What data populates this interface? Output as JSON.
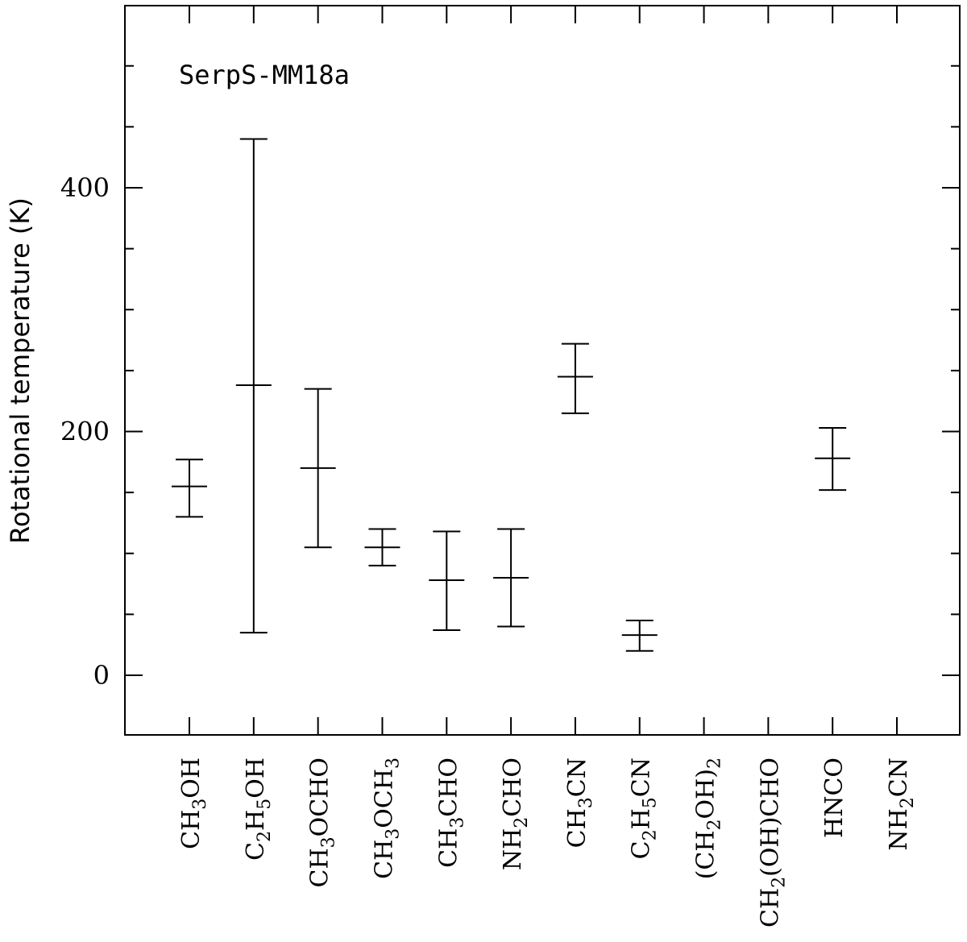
{
  "chart_data": {
    "type": "scatter",
    "title": "SerpS-MM18a",
    "xlabel": "",
    "ylabel": "Rotational temperature (K)",
    "ylim": [
      -50,
      550
    ],
    "yticks": [
      0,
      200,
      400
    ],
    "categories": [
      {
        "base": "CH",
        "sub": "3",
        "tail": "OH"
      },
      {
        "base": "C",
        "sub": "2",
        "mid": "H",
        "sub2": "5",
        "tail": "OH"
      },
      {
        "base": "CH",
        "sub": "3",
        "tail": "OCHO"
      },
      {
        "base": "CH",
        "sub": "3",
        "mid": "OCH",
        "sub2": "3"
      },
      {
        "base": "CH",
        "sub": "3",
        "tail": "CHO"
      },
      {
        "base": "NH",
        "sub": "2",
        "tail": "CHO"
      },
      {
        "base": "CH",
        "sub": "3",
        "tail": "CN"
      },
      {
        "base": "C",
        "sub": "2",
        "mid": "H",
        "sub2": "5",
        "tail": "CN"
      },
      {
        "base": "(CH",
        "sub": "2",
        "tail": "OH)",
        "sub2": "2"
      },
      {
        "base": "CH",
        "sub": "2",
        "tail": "(OH)CHO"
      },
      {
        "base": "HNCO"
      },
      {
        "base": "NH",
        "sub": "2",
        "tail": "CN"
      }
    ],
    "series": [
      {
        "name": "SerpS-MM18a",
        "values": [
          155,
          238,
          170,
          105,
          78,
          80,
          245,
          33,
          null,
          null,
          178,
          null
        ],
        "lower": [
          130,
          35,
          105,
          90,
          37,
          40,
          215,
          20,
          null,
          null,
          152,
          null
        ],
        "upper": [
          177,
          440,
          235,
          120,
          118,
          120,
          272,
          45,
          null,
          null,
          203,
          null
        ]
      }
    ]
  }
}
